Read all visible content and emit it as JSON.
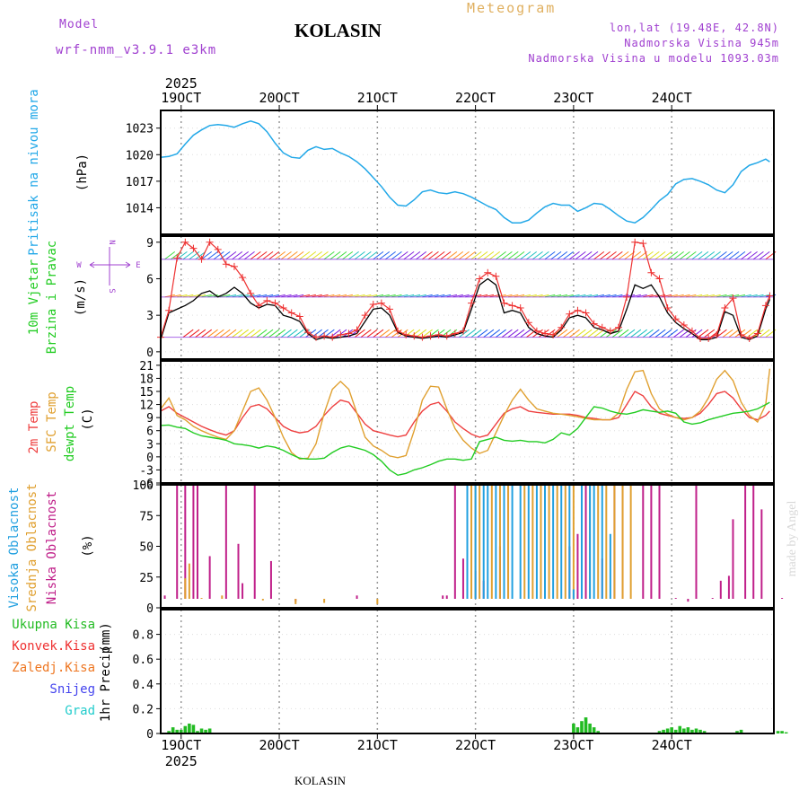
{
  "header": {
    "model_label": "Model",
    "model_name": "wrf-nmm_v3.9.1 e3km",
    "station": "KOLASIN",
    "product": "Meteogram",
    "coords": "lon,lat (19.48E, 42.8N)",
    "elevation": "Nadmorska Visina 945m",
    "model_elevation": "Nadmorska Visina u modelu 1093.03m"
  },
  "footer": {
    "station": "KOLASIN",
    "credit": "made by Angel"
  },
  "time_axis": {
    "year": "2025",
    "days": [
      "19OCT",
      "20OCT",
      "21OCT",
      "22OCT",
      "23OCT",
      "24OCT"
    ]
  },
  "colors": {
    "pressure": "#22a8e8",
    "wind_speed": "#000000",
    "gust": "#ee3030",
    "t2m": "#ee4040",
    "sfc": "#e0a030",
    "dewpt": "#22cc22",
    "high_cloud": "#22a0e0",
    "mid_cloud": "#e0a030",
    "low_cloud": "#c0208a",
    "precip": "#22bb22",
    "conv": "#ee3030",
    "frozen": "#ee7722",
    "snow": "#4444ee",
    "hail": "#22cccc",
    "label_green": "#22cc22",
    "label_purple": "#a040d0"
  },
  "chart_data": [
    {
      "type": "line",
      "id": "pressure",
      "ylabel": "Pritisak na nivou mora",
      "unit": "(hPa)",
      "ylim": [
        1011,
        1025
      ],
      "yticks": [
        "1014",
        "1017",
        "1020",
        "1023"
      ],
      "x_unit": "hours from 19OCT 00UTC",
      "x": [
        -5,
        -3,
        -1,
        1,
        3,
        5,
        7,
        9,
        11,
        13,
        15,
        17,
        19,
        21,
        23,
        25,
        27,
        29,
        31,
        33,
        35,
        37,
        39,
        41,
        43,
        45,
        47,
        49,
        51,
        53,
        55,
        57,
        59,
        61,
        63,
        65,
        67,
        69,
        71,
        73,
        75,
        77,
        79,
        81,
        83,
        85,
        87,
        89,
        91,
        93,
        95,
        97,
        99,
        101,
        103,
        105,
        107,
        109,
        111,
        113,
        115,
        117,
        119,
        121,
        123,
        125,
        127,
        129,
        131,
        133,
        135,
        137,
        139,
        141,
        143,
        144
      ],
      "values": [
        1019.7,
        1019.8,
        1020.1,
        1021.2,
        1022.2,
        1022.8,
        1023.3,
        1023.4,
        1023.3,
        1023.1,
        1023.5,
        1023.8,
        1023.5,
        1022.6,
        1021.3,
        1020.2,
        1019.7,
        1019.6,
        1020.5,
        1020.9,
        1020.6,
        1020.7,
        1020.2,
        1019.8,
        1019.2,
        1018.4,
        1017.4,
        1016.4,
        1015.2,
        1014.3,
        1014.2,
        1014.9,
        1015.8,
        1016.0,
        1015.7,
        1015.6,
        1015.8,
        1015.6,
        1015.2,
        1014.7,
        1014.2,
        1013.8,
        1012.9,
        1012.3,
        1012.3,
        1012.6,
        1013.4,
        1014.1,
        1014.5,
        1014.3,
        1014.3,
        1013.6,
        1014.0,
        1014.5,
        1014.4,
        1013.8,
        1013.1,
        1012.5,
        1012.3,
        1012.9,
        1013.8,
        1014.8,
        1015.5,
        1016.7,
        1017.2,
        1017.3,
        1017.0,
        1016.6,
        1016.0,
        1015.7,
        1016.6,
        1018.1,
        1018.8,
        1019.1,
        1019.5,
        1019.2
      ]
    },
    {
      "type": "line",
      "id": "wind",
      "ylabel_1": "10m Vjetar",
      "ylabel_2": "Brzina i Pravac",
      "unit": "(m/s)",
      "compass_n": "N",
      "compass_e": "E",
      "compass_w": "W",
      "compass_s": "S",
      "ylim": [
        -0.6,
        9.5
      ],
      "yticks": [
        "0",
        "3",
        "6",
        "9"
      ],
      "x": [
        -5,
        -3,
        -1,
        1,
        3,
        5,
        7,
        9,
        11,
        13,
        15,
        17,
        19,
        21,
        23,
        25,
        27,
        29,
        31,
        33,
        35,
        37,
        39,
        41,
        43,
        45,
        47,
        49,
        51,
        53,
        55,
        57,
        59,
        61,
        63,
        65,
        67,
        69,
        71,
        73,
        75,
        77,
        79,
        81,
        83,
        85,
        87,
        89,
        91,
        93,
        95,
        97,
        99,
        101,
        103,
        105,
        107,
        109,
        111,
        113,
        115,
        117,
        119,
        121,
        123,
        125,
        127,
        129,
        131,
        133,
        135,
        137,
        139,
        141,
        143,
        144
      ],
      "series": [
        {
          "name": "speed",
          "values": [
            1.0,
            3.2,
            3.5,
            3.8,
            4.2,
            4.8,
            5.0,
            4.5,
            4.8,
            5.3,
            4.8,
            4.0,
            3.6,
            3.9,
            3.8,
            3.0,
            2.8,
            2.5,
            1.5,
            1.0,
            1.2,
            1.1,
            1.2,
            1.3,
            1.5,
            2.5,
            3.5,
            3.6,
            3.0,
            1.6,
            1.3,
            1.2,
            1.1,
            1.2,
            1.3,
            1.2,
            1.4,
            1.6,
            3.5,
            5.5,
            6.0,
            5.5,
            3.2,
            3.4,
            3.2,
            2.0,
            1.5,
            1.3,
            1.2,
            1.8,
            2.8,
            3.0,
            2.8,
            2.0,
            1.8,
            1.5,
            1.7,
            3.5,
            5.5,
            5.2,
            5.5,
            4.5,
            3.2,
            2.4,
            1.9,
            1.5,
            1.0,
            1.0,
            1.2,
            3.3,
            3.0,
            1.2,
            1.0,
            1.3,
            3.5,
            4.3
          ]
        },
        {
          "name": "gust",
          "values": [
            1.2,
            3.4,
            7.7,
            9.0,
            8.5,
            7.6,
            9.0,
            8.4,
            7.2,
            7.0,
            6.1,
            4.8,
            3.8,
            4.2,
            4.0,
            3.6,
            3.2,
            2.9,
            1.6,
            1.2,
            1.3,
            1.2,
            1.4,
            1.5,
            1.8,
            3.0,
            3.9,
            4.0,
            3.5,
            1.7,
            1.4,
            1.3,
            1.2,
            1.3,
            1.4,
            1.3,
            1.5,
            1.7,
            4.0,
            6.0,
            6.5,
            6.2,
            4.0,
            3.8,
            3.6,
            2.4,
            1.7,
            1.5,
            1.4,
            2.0,
            3.1,
            3.4,
            3.2,
            2.3,
            2.0,
            1.7,
            2.0,
            4.5,
            9.0,
            8.9,
            6.5,
            6.0,
            3.6,
            2.7,
            2.2,
            1.7,
            1.1,
            1.1,
            1.4,
            3.6,
            4.4,
            1.4,
            1.1,
            1.5,
            3.8,
            4.6
          ]
        }
      ]
    },
    {
      "type": "line",
      "id": "temperature",
      "ylabel_1": "2m Temp",
      "ylabel_2": "SFC Temp",
      "ylabel_3": "dewpt Temp",
      "unit": "(C)",
      "ylim": [
        -6,
        22
      ],
      "yticks": [
        "-6",
        "-3",
        "0",
        "3",
        "6",
        "9",
        "12",
        "15",
        "18",
        "21"
      ],
      "x": [
        -5,
        -3,
        -1,
        1,
        3,
        5,
        7,
        9,
        11,
        13,
        15,
        17,
        19,
        21,
        23,
        25,
        27,
        29,
        31,
        33,
        35,
        37,
        39,
        41,
        43,
        45,
        47,
        49,
        51,
        53,
        55,
        57,
        59,
        61,
        63,
        65,
        67,
        69,
        71,
        73,
        75,
        77,
        79,
        81,
        83,
        85,
        87,
        89,
        91,
        93,
        95,
        97,
        99,
        101,
        103,
        105,
        107,
        109,
        111,
        113,
        115,
        117,
        119,
        121,
        123,
        125,
        127,
        129,
        131,
        133,
        135,
        137,
        139,
        141,
        143,
        144
      ],
      "series": [
        {
          "name": "2m Temp",
          "values": [
            10.5,
            11.5,
            10.0,
            9.0,
            8.0,
            7.0,
            6.2,
            5.5,
            5.0,
            6.0,
            9.0,
            11.5,
            12.0,
            11.0,
            9.0,
            7.0,
            6.0,
            5.5,
            5.8,
            7.0,
            9.5,
            11.5,
            13.0,
            12.5,
            10.0,
            7.5,
            6.0,
            5.5,
            5.0,
            4.6,
            5.0,
            8.0,
            10.5,
            12.0,
            12.5,
            10.5,
            8.0,
            6.5,
            5.2,
            4.5,
            5.0,
            7.5,
            10.0,
            11.0,
            11.5,
            10.5,
            10.2,
            10.0,
            9.8,
            9.8,
            9.8,
            9.5,
            9.0,
            8.8,
            8.5,
            8.5,
            9.0,
            12.0,
            15.0,
            14.0,
            11.5,
            10.0,
            9.5,
            9.0,
            8.8,
            9.0,
            10.0,
            12.0,
            14.5,
            15.0,
            13.5,
            11.0,
            9.0,
            8.5,
            9.5,
            10.5
          ]
        },
        {
          "name": "SFC Temp",
          "values": [
            11.0,
            13.5,
            9.5,
            8.5,
            7.0,
            6.0,
            5.2,
            4.5,
            4.0,
            6.0,
            10.5,
            15.0,
            15.8,
            13.0,
            9.0,
            4.5,
            1.0,
            -0.5,
            -0.3,
            3.0,
            10.0,
            15.5,
            17.3,
            15.5,
            10.0,
            4.5,
            2.5,
            1.5,
            0.2,
            -0.2,
            0.3,
            6.0,
            13.0,
            16.2,
            16.0,
            11.0,
            6.5,
            3.8,
            2.0,
            0.8,
            1.5,
            5.5,
            9.5,
            13.0,
            15.5,
            13.0,
            11.0,
            10.5,
            10.0,
            9.8,
            9.5,
            9.2,
            8.8,
            8.5,
            8.5,
            8.5,
            10.0,
            15.5,
            19.5,
            19.8,
            14.5,
            11.0,
            9.8,
            9.0,
            8.5,
            9.0,
            10.5,
            13.5,
            17.8,
            19.8,
            17.5,
            12.5,
            9.5,
            8.0,
            12.0,
            20.2
          ]
        },
        {
          "name": "dewpt Temp",
          "values": [
            7.2,
            7.3,
            6.8,
            6.5,
            5.5,
            4.8,
            4.5,
            4.2,
            3.8,
            3.0,
            2.8,
            2.5,
            2.0,
            2.5,
            2.2,
            1.5,
            0.5,
            -0.3,
            -0.5,
            -0.5,
            -0.3,
            1.0,
            2.0,
            2.5,
            2.0,
            1.5,
            0.5,
            -1.0,
            -3.0,
            -4.2,
            -3.8,
            -3.0,
            -2.5,
            -1.8,
            -1.0,
            -0.5,
            -0.5,
            -0.8,
            -0.5,
            3.5,
            4.0,
            4.5,
            3.8,
            3.6,
            3.8,
            3.5,
            3.5,
            3.2,
            4.0,
            5.5,
            5.0,
            6.5,
            9.0,
            11.5,
            11.2,
            10.5,
            10.0,
            9.8,
            10.2,
            10.8,
            10.5,
            10.2,
            10.5,
            10.0,
            8.0,
            7.5,
            7.8,
            8.5,
            9.0,
            9.5,
            10.0,
            10.2,
            10.5,
            11.0,
            12.0,
            12.5
          ]
        }
      ]
    },
    {
      "type": "bar",
      "id": "clouds",
      "ylabel_1": "Visoka Oblacnost",
      "ylabel_2": "Srednja Oblacnost",
      "ylabel_3": "Niska Oblacnost",
      "unit": "(%)",
      "ylim": [
        0,
        100
      ],
      "yticks": [
        "0",
        "25",
        "50",
        "75",
        "100"
      ],
      "series": [
        {
          "name": "Niska",
          "x": [
            -4,
            -1,
            1,
            3,
            4,
            7,
            11,
            14,
            15,
            18,
            22,
            28,
            43,
            64,
            65,
            67,
            69,
            72,
            74,
            78,
            80,
            95,
            97,
            99,
            103,
            106,
            108,
            113,
            115,
            117,
            121,
            124,
            126,
            130,
            132,
            134,
            135,
            138,
            140,
            142,
            147
          ],
          "values": [
            10,
            100,
            100,
            100,
            100,
            42,
            100,
            52,
            20,
            100,
            38,
            5,
            10,
            10,
            10,
            100,
            40,
            30,
            22,
            50,
            100,
            50,
            60,
            100,
            40,
            100,
            100,
            100,
            100,
            100,
            8,
            5,
            100,
            8,
            22,
            26,
            72,
            100,
            100,
            80,
            8
          ]
        },
        {
          "name": "Srednja",
          "x": [
            1,
            2,
            5,
            10,
            20,
            28,
            35,
            48,
            71,
            72,
            73,
            76,
            78,
            80,
            84,
            86,
            88,
            90,
            92,
            94,
            96,
            98,
            100,
            102,
            104,
            106,
            108,
            110
          ],
          "values": [
            24,
            36,
            8,
            10,
            6,
            3,
            4,
            3,
            100,
            100,
            100,
            100,
            100,
            100,
            100,
            100,
            100,
            100,
            100,
            100,
            100,
            100,
            100,
            100,
            100,
            100,
            100,
            100
          ]
        },
        {
          "name": "Visoka",
          "x": [
            70,
            72,
            74,
            75,
            77,
            79,
            81,
            83,
            85,
            87,
            89,
            91,
            93,
            95,
            96,
            98,
            100,
            101,
            103,
            105
          ],
          "values": [
            100,
            100,
            100,
            100,
            100,
            100,
            100,
            100,
            100,
            100,
            100,
            100,
            100,
            100,
            15,
            100,
            100,
            100,
            100,
            60
          ]
        }
      ]
    },
    {
      "type": "bar",
      "id": "precip",
      "ylabel": "1hr Precip",
      "unit": "(mm)",
      "ylim": [
        0,
        1.0
      ],
      "yticks": [
        "0",
        "0.2",
        "0.4",
        "0.6",
        "0.8"
      ],
      "legend": [
        "Ukupna Kisa",
        "Konvek.Kisa",
        "Zaledj.Kisa",
        "Snijeg",
        "Grad"
      ],
      "x": [
        -3,
        -2,
        -1,
        0,
        1,
        2,
        3,
        4,
        5,
        6,
        7,
        96,
        97,
        98,
        99,
        100,
        101,
        102,
        117,
        118,
        119,
        120,
        121,
        122,
        123,
        124,
        125,
        126,
        127,
        128,
        136,
        137,
        146,
        147,
        148
      ],
      "values": [
        0.02,
        0.05,
        0.03,
        0.03,
        0.06,
        0.08,
        0.07,
        0.02,
        0.04,
        0.03,
        0.04,
        0.08,
        0.05,
        0.1,
        0.13,
        0.08,
        0.05,
        0.02,
        0.02,
        0.03,
        0.04,
        0.05,
        0.03,
        0.06,
        0.04,
        0.05,
        0.03,
        0.04,
        0.03,
        0.02,
        0.02,
        0.03,
        0.02,
        0.02,
        0.01
      ]
    }
  ]
}
